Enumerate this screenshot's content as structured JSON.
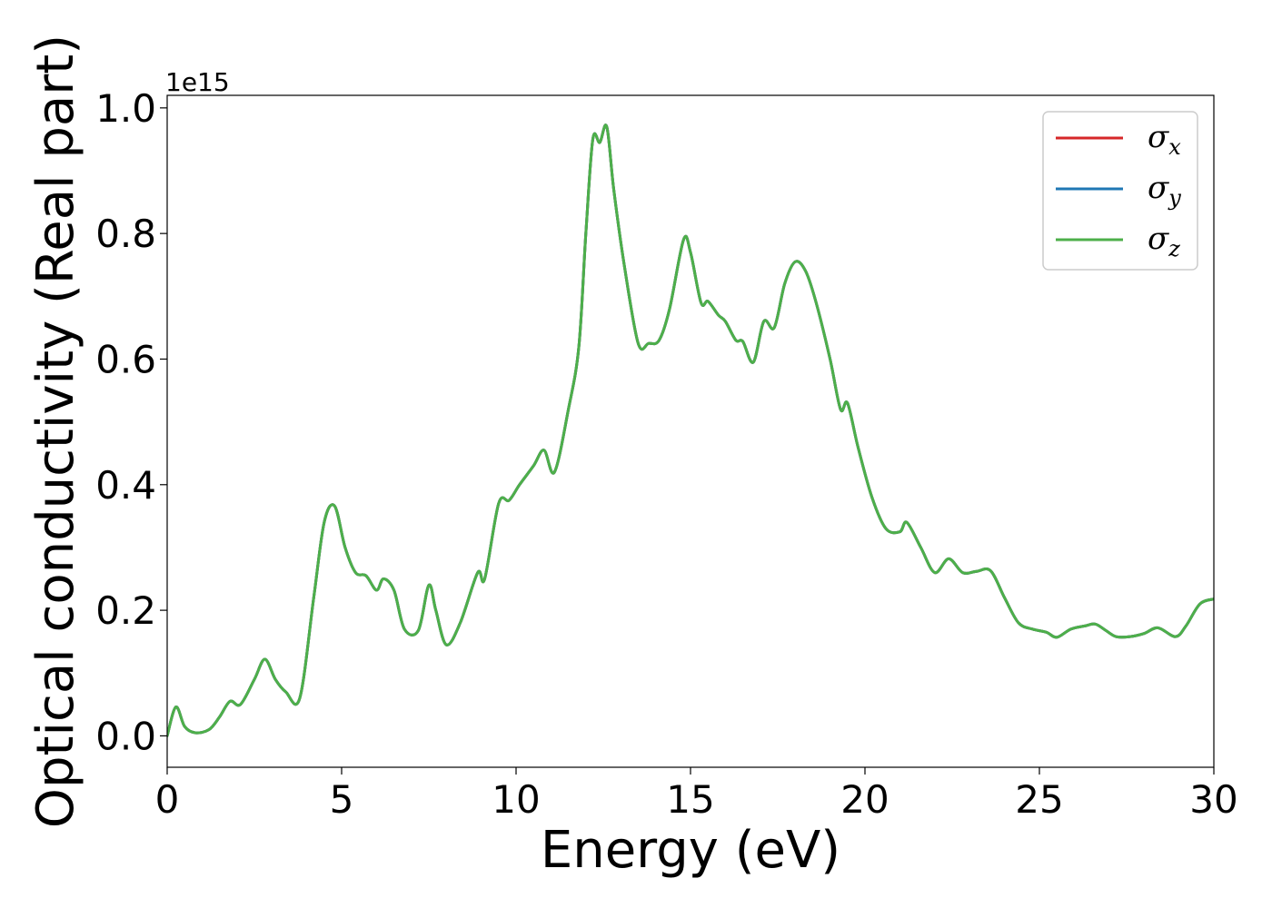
{
  "chart_data": {
    "type": "line",
    "title": "",
    "xlabel": "Energy (eV)",
    "ylabel": "Optical conductivity (Real part)",
    "y_offset_label": "1e15",
    "xlim": [
      0,
      30
    ],
    "ylim": [
      -0.05,
      1.02
    ],
    "xticks": [
      0,
      5,
      10,
      15,
      20,
      25,
      30
    ],
    "yticks": [
      0.0,
      0.2,
      0.4,
      0.6,
      0.8,
      1.0
    ],
    "xtick_labels": [
      "0",
      "5",
      "10",
      "15",
      "20",
      "25",
      "30"
    ],
    "ytick_labels": [
      "0.0",
      "0.2",
      "0.4",
      "0.6",
      "0.8",
      "1.0"
    ],
    "grid": false,
    "legend": "top-right",
    "series": [
      {
        "name": "σx",
        "symbol": "σ",
        "subscript": "x",
        "color": "#d62728"
      },
      {
        "name": "σy",
        "symbol": "σ",
        "subscript": "y",
        "color": "#1f77b4"
      },
      {
        "name": "σz",
        "symbol": "σ",
        "subscript": "z",
        "color": "#4daf4a"
      }
    ],
    "x": [
      0.0,
      0.25,
      0.5,
      0.8,
      1.2,
      1.5,
      1.8,
      2.1,
      2.5,
      2.8,
      3.1,
      3.4,
      3.8,
      4.2,
      4.5,
      4.8,
      5.1,
      5.4,
      5.7,
      6.0,
      6.2,
      6.5,
      6.8,
      7.2,
      7.5,
      7.7,
      8.0,
      8.4,
      8.9,
      9.1,
      9.5,
      9.8,
      10.1,
      10.5,
      10.8,
      11.1,
      11.5,
      11.8,
      12.0,
      12.2,
      12.4,
      12.6,
      12.8,
      13.1,
      13.5,
      13.8,
      14.1,
      14.4,
      14.8,
      15.0,
      15.3,
      15.5,
      15.8,
      16.0,
      16.3,
      16.5,
      16.8,
      17.1,
      17.4,
      17.7,
      18.0,
      18.3,
      18.6,
      19.0,
      19.3,
      19.5,
      19.8,
      20.2,
      20.6,
      21.0,
      21.2,
      21.6,
      22.0,
      22.4,
      22.8,
      23.2,
      23.6,
      24.0,
      24.4,
      24.8,
      25.2,
      25.5,
      25.9,
      26.3,
      26.6,
      26.9,
      27.2,
      27.6,
      28.0,
      28.4,
      28.9,
      29.2,
      29.6,
      30.0
    ],
    "y": [
      0.0,
      0.046,
      0.015,
      0.005,
      0.01,
      0.03,
      0.055,
      0.05,
      0.09,
      0.122,
      0.09,
      0.07,
      0.06,
      0.22,
      0.34,
      0.366,
      0.3,
      0.26,
      0.255,
      0.232,
      0.25,
      0.232,
      0.17,
      0.168,
      0.24,
      0.2,
      0.145,
      0.18,
      0.26,
      0.25,
      0.37,
      0.375,
      0.4,
      0.43,
      0.455,
      0.42,
      0.52,
      0.62,
      0.8,
      0.95,
      0.945,
      0.97,
      0.87,
      0.75,
      0.625,
      0.625,
      0.63,
      0.68,
      0.79,
      0.77,
      0.69,
      0.692,
      0.67,
      0.66,
      0.63,
      0.628,
      0.595,
      0.66,
      0.65,
      0.72,
      0.755,
      0.74,
      0.69,
      0.6,
      0.52,
      0.53,
      0.46,
      0.38,
      0.33,
      0.325,
      0.34,
      0.3,
      0.26,
      0.282,
      0.26,
      0.262,
      0.263,
      0.22,
      0.18,
      0.17,
      0.165,
      0.157,
      0.17,
      0.175,
      0.178,
      0.168,
      0.158,
      0.158,
      0.163,
      0.172,
      0.158,
      0.175,
      0.21,
      0.218
    ]
  }
}
